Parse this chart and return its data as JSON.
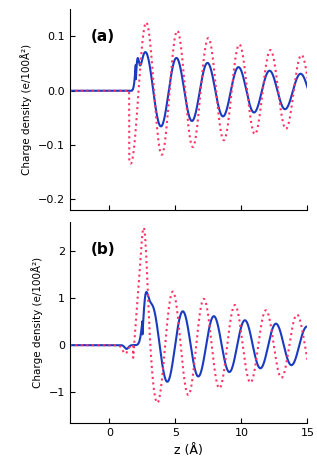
{
  "title_a": "(a)",
  "title_b": "(b)",
  "xlabel": "z (Å)",
  "ylabel": "Charge density (e/100Å²)",
  "xlim": [
    -3,
    15
  ],
  "ylim_a": [
    -0.22,
    0.15
  ],
  "ylim_b": [
    -1.65,
    2.6
  ],
  "yticks_a": [
    -0.2,
    -0.1,
    0.0,
    0.1
  ],
  "yticks_b": [
    -1,
    0,
    1,
    2
  ],
  "xticks": [
    0,
    5,
    10,
    15
  ],
  "solid_color": "#1a3bbf",
  "dotted_color": "#ff3366",
  "background_color": "#ffffff"
}
